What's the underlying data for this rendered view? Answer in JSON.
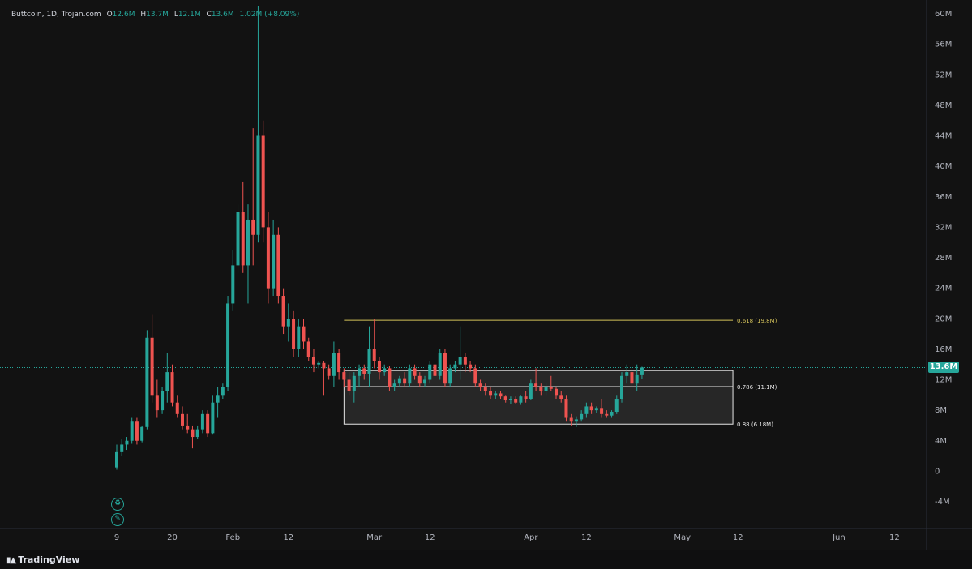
{
  "legend": {
    "symbol": "Buttcoin, 1D, Trojan.com",
    "o_key": "O",
    "o_val": "12.6M",
    "h_key": "H",
    "h_val": "13.7M",
    "l_key": "L",
    "l_val": "12.1M",
    "c_key": "C",
    "c_val": "13.6M",
    "change": "1.02M (+8.09%)"
  },
  "last_price_label": "13.6M",
  "footer": {
    "brand": "TradingView"
  },
  "colors": {
    "up": "#26a69a",
    "down": "#ef5350",
    "fib_618": "#d4c25a",
    "box_fill": "#2a2a2a",
    "box_stroke": "#e6e6e6",
    "axis_text": "#b2b5be"
  },
  "badges": [
    "recycle-icon",
    "pencil-icon"
  ],
  "chart_data": {
    "type": "candlestick",
    "title": "",
    "xlabel": "",
    "ylabel": "",
    "y_unit": "M",
    "ylim": [
      -6,
      61
    ],
    "y_ticks": [
      -4,
      0,
      4,
      8,
      12,
      16,
      20,
      24,
      28,
      32,
      36,
      40,
      44,
      48,
      52,
      56,
      60
    ],
    "y_tick_labels": [
      "-4M",
      "0",
      "4M",
      "8M",
      "12M",
      "16M",
      "20M",
      "24M",
      "28M",
      "32M",
      "36M",
      "40M",
      "44M",
      "48M",
      "52M",
      "56M",
      "60M"
    ],
    "x_ticks": [
      {
        "label": "9",
        "date": "2025-01-09"
      },
      {
        "label": "20",
        "date": "2025-01-20"
      },
      {
        "label": "Feb",
        "date": "2025-02-01"
      },
      {
        "label": "12",
        "date": "2025-02-12"
      },
      {
        "label": "Mar",
        "date": "2025-03-01"
      },
      {
        "label": "12",
        "date": "2025-03-12"
      },
      {
        "label": "Apr",
        "date": "2025-04-01"
      },
      {
        "label": "12",
        "date": "2025-04-12"
      },
      {
        "label": "May",
        "date": "2025-05-01"
      },
      {
        "label": "12",
        "date": "2025-05-12"
      },
      {
        "label": "Jun",
        "date": "2025-06-01"
      },
      {
        "label": "12",
        "date": "2025-06-12"
      }
    ],
    "first_date": "2025-01-09",
    "candles": [
      [
        0.5,
        3.5,
        0.2,
        2.5
      ],
      [
        2.5,
        4.2,
        2.0,
        3.5
      ],
      [
        3.5,
        4.5,
        2.8,
        4.0
      ],
      [
        4.0,
        7.0,
        3.6,
        6.5
      ],
      [
        6.5,
        7.0,
        3.5,
        4.0
      ],
      [
        4.0,
        6.0,
        3.8,
        5.8
      ],
      [
        5.8,
        18.5,
        5.5,
        17.5
      ],
      [
        17.5,
        20.5,
        9.0,
        10.0
      ],
      [
        10.0,
        12.0,
        7.0,
        8.0
      ],
      [
        8.0,
        11.0,
        7.5,
        10.5
      ],
      [
        10.5,
        15.5,
        9.0,
        13.0
      ],
      [
        13.0,
        14.0,
        8.5,
        9.0
      ],
      [
        9.0,
        10.0,
        7.0,
        7.5
      ],
      [
        7.5,
        8.5,
        5.5,
        6.0
      ],
      [
        6.0,
        7.5,
        5.0,
        5.5
      ],
      [
        5.5,
        6.0,
        3.0,
        4.5
      ],
      [
        4.5,
        6.0,
        4.2,
        5.5
      ],
      [
        5.5,
        8.0,
        5.0,
        7.5
      ],
      [
        7.5,
        8.0,
        4.5,
        5.0
      ],
      [
        5.0,
        10.0,
        4.8,
        9.0
      ],
      [
        9.0,
        11.0,
        7.0,
        10.0
      ],
      [
        10.0,
        11.5,
        9.5,
        11.0
      ],
      [
        11.0,
        23.0,
        10.5,
        22.0
      ],
      [
        22.0,
        29.0,
        21.0,
        27.0
      ],
      [
        27.0,
        35.0,
        26.0,
        34.0
      ],
      [
        34.0,
        38.0,
        26.0,
        27.0
      ],
      [
        27.0,
        35.0,
        22.0,
        33.0
      ],
      [
        33.0,
        45.0,
        27.0,
        31.0
      ],
      [
        31.0,
        61.0,
        30.0,
        44.0
      ],
      [
        44.0,
        46.0,
        30.0,
        32.0
      ],
      [
        32.0,
        34.0,
        22.0,
        24.0
      ],
      [
        24.0,
        33.0,
        23.0,
        31.0
      ],
      [
        31.0,
        32.0,
        22.0,
        23.0
      ],
      [
        23.0,
        24.0,
        18.0,
        19.0
      ],
      [
        19.0,
        22.0,
        17.0,
        20.0
      ],
      [
        20.0,
        21.0,
        15.0,
        16.0
      ],
      [
        16.0,
        20.0,
        15.0,
        19.0
      ],
      [
        19.0,
        20.0,
        16.0,
        17.0
      ],
      [
        17.0,
        17.5,
        14.5,
        15.0
      ],
      [
        15.0,
        16.0,
        13.0,
        14.0
      ],
      [
        14.0,
        14.5,
        13.5,
        14.2
      ],
      [
        14.2,
        14.5,
        10.0,
        13.5
      ],
      [
        13.5,
        14.0,
        12.0,
        12.5
      ],
      [
        12.5,
        17.0,
        11.0,
        15.5
      ],
      [
        15.5,
        16.0,
        12.0,
        13.0
      ],
      [
        13.0,
        13.5,
        11.0,
        12.0
      ],
      [
        12.0,
        13.0,
        10.0,
        10.5
      ],
      [
        10.5,
        13.0,
        9.0,
        12.5
      ],
      [
        12.5,
        14.0,
        11.0,
        13.5
      ],
      [
        13.5,
        14.0,
        12.0,
        12.8
      ],
      [
        12.8,
        19.0,
        11.0,
        16.0
      ],
      [
        16.0,
        20.0,
        13.5,
        14.5
      ],
      [
        14.5,
        15.0,
        12.0,
        13.0
      ],
      [
        13.0,
        14.0,
        12.5,
        13.5
      ],
      [
        13.5,
        13.8,
        10.5,
        11.0
      ],
      [
        11.0,
        12.0,
        10.5,
        11.5
      ],
      [
        11.5,
        12.5,
        11.0,
        12.2
      ],
      [
        12.2,
        13.0,
        11.0,
        11.5
      ],
      [
        11.5,
        14.0,
        11.0,
        13.5
      ],
      [
        13.5,
        14.0,
        12.0,
        12.5
      ],
      [
        12.5,
        13.0,
        11.0,
        11.5
      ],
      [
        11.5,
        12.5,
        11.0,
        12.0
      ],
      [
        12.0,
        14.5,
        11.5,
        14.0
      ],
      [
        14.0,
        15.0,
        12.0,
        12.5
      ],
      [
        12.5,
        16.0,
        12.0,
        15.5
      ],
      [
        15.5,
        16.0,
        11.0,
        11.5
      ],
      [
        11.5,
        14.0,
        11.0,
        13.5
      ],
      [
        13.5,
        14.5,
        13.0,
        14.0
      ],
      [
        14.0,
        19.0,
        12.0,
        15.0
      ],
      [
        15.0,
        15.5,
        13.0,
        14.0
      ],
      [
        14.0,
        14.5,
        13.0,
        13.5
      ],
      [
        13.5,
        14.0,
        11.0,
        11.5
      ],
      [
        11.5,
        12.0,
        10.5,
        11.0
      ],
      [
        11.0,
        11.5,
        10.0,
        10.5
      ],
      [
        10.5,
        11.0,
        9.5,
        10.0
      ],
      [
        10.0,
        10.5,
        9.5,
        10.2
      ],
      [
        10.2,
        10.5,
        9.5,
        9.8
      ],
      [
        9.8,
        10.0,
        9.0,
        9.3
      ],
      [
        9.3,
        9.8,
        8.8,
        9.5
      ],
      [
        9.5,
        9.8,
        8.8,
        9.0
      ],
      [
        9.0,
        10.0,
        8.7,
        9.8
      ],
      [
        9.8,
        10.5,
        9.0,
        9.5
      ],
      [
        9.5,
        12.0,
        9.3,
        11.5
      ],
      [
        11.5,
        13.5,
        10.5,
        11.0
      ],
      [
        11.0,
        11.5,
        10.0,
        10.5
      ],
      [
        10.5,
        11.5,
        10.0,
        11.0
      ],
      [
        11.0,
        12.5,
        10.5,
        10.8
      ],
      [
        10.8,
        11.0,
        9.5,
        10.0
      ],
      [
        10.0,
        10.5,
        9.0,
        9.5
      ],
      [
        9.5,
        10.0,
        6.5,
        7.0
      ],
      [
        7.0,
        7.5,
        6.0,
        6.5
      ],
      [
        6.5,
        7.2,
        5.8,
        6.8
      ],
      [
        6.8,
        8.0,
        6.5,
        7.5
      ],
      [
        7.5,
        9.0,
        7.0,
        8.5
      ],
      [
        8.5,
        9.0,
        7.5,
        8.0
      ],
      [
        8.0,
        8.5,
        7.6,
        8.3
      ],
      [
        8.3,
        9.5,
        7.0,
        7.5
      ],
      [
        7.5,
        8.0,
        7.0,
        7.3
      ],
      [
        7.3,
        8.0,
        7.0,
        7.8
      ],
      [
        7.8,
        10.0,
        7.5,
        9.5
      ],
      [
        9.5,
        13.0,
        9.0,
        12.5
      ],
      [
        12.5,
        14.0,
        11.5,
        13.0
      ],
      [
        13.0,
        13.5,
        11.0,
        11.5
      ],
      [
        11.5,
        14.0,
        10.5,
        12.6
      ],
      [
        12.6,
        13.7,
        12.1,
        13.6
      ]
    ],
    "fib_levels": [
      {
        "label": "0.618 (19.8M)",
        "value": 19.8
      },
      {
        "label": "0.786 (11.1M)",
        "value": 11.1
      },
      {
        "label": "0.88 (6.18M)",
        "value": 6.18
      }
    ],
    "fib_range": {
      "start": "2025-02-23",
      "end": "2025-05-11"
    },
    "box": {
      "top": 13.2,
      "bottom": 6.18,
      "mid": 11.1
    },
    "last_price": 13.6,
    "grid": false
  }
}
